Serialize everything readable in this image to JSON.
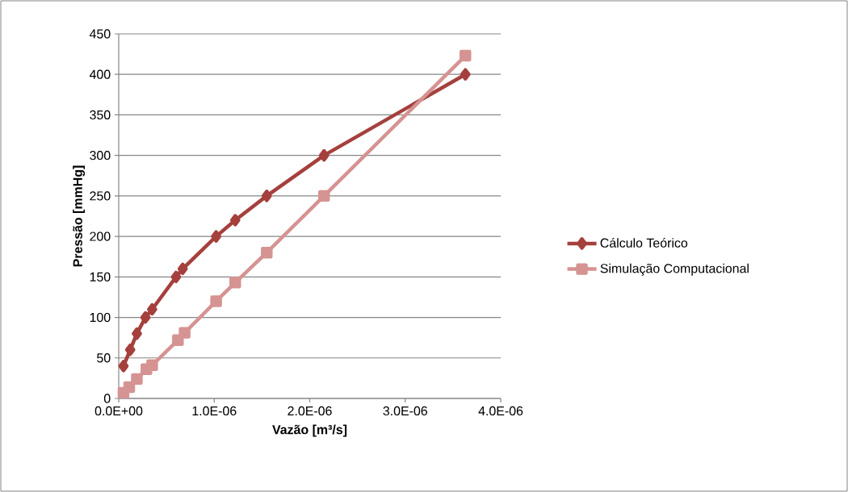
{
  "chart_data": {
    "type": "line",
    "xlabel": "Vazão [m³/s]",
    "ylabel": "Pressão [mmHg]",
    "xlim": [
      0,
      4e-06
    ],
    "ylim": [
      0,
      450
    ],
    "xticks": [
      {
        "value": 0,
        "label": "0.0E+00"
      },
      {
        "value": 1e-06,
        "label": "1.0E-06"
      },
      {
        "value": 2e-06,
        "label": "2.0E-06"
      },
      {
        "value": 3e-06,
        "label": "3.0E-06"
      },
      {
        "value": 4e-06,
        "label": "4.0E-06"
      }
    ],
    "yticks": [
      0,
      50,
      100,
      150,
      200,
      250,
      300,
      350,
      400,
      450
    ],
    "grid": "y",
    "legend": "right",
    "line_style": "solid",
    "series": [
      {
        "name": "Cálculo Teórico",
        "color": "#a5403d",
        "marker": "diamond",
        "x": [
          5e-08,
          1.2e-07,
          1.9e-07,
          2.8e-07,
          3.5e-07,
          6e-07,
          6.7e-07,
          1.02e-06,
          1.22e-06,
          1.55e-06,
          2.15e-06,
          3.63e-06
        ],
        "values": [
          40,
          60,
          80,
          100,
          110,
          150,
          160,
          200,
          220,
          250,
          300,
          400
        ]
      },
      {
        "name": "Simulação Computacional",
        "color": "#d59392",
        "marker": "square",
        "x": [
          5e-08,
          1.1e-07,
          1.9e-07,
          2.9e-07,
          3.5e-07,
          6.2e-07,
          6.9e-07,
          1.02e-06,
          1.22e-06,
          1.55e-06,
          2.15e-06,
          3.63e-06
        ],
        "values": [
          7,
          14,
          24,
          36,
          41,
          72,
          81,
          120,
          143,
          180,
          250,
          423
        ]
      }
    ]
  }
}
